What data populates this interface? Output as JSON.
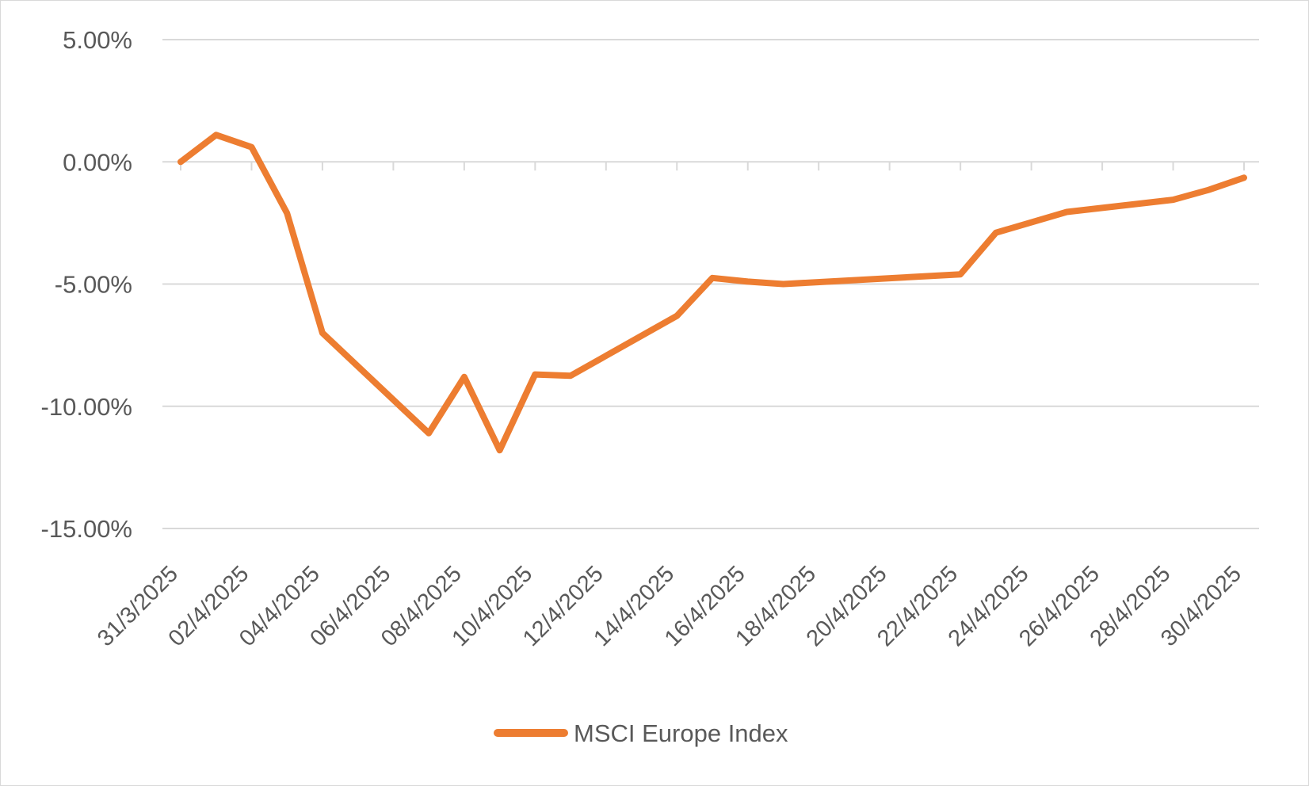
{
  "chart_data": {
    "type": "line",
    "title": "",
    "xlabel": "",
    "ylabel": "",
    "ylim": [
      -15,
      5
    ],
    "y_ticks": [
      "5.00%",
      "0.00%",
      "-5.00%",
      "-10.00%",
      "-15.00%"
    ],
    "y_tick_values": [
      5,
      0,
      -5,
      -10,
      -15
    ],
    "x_start": "31/3/2025",
    "x_end": "30/4/2025",
    "x_ticks": [
      "31/3/2025",
      "02/4/2025",
      "04/4/2025",
      "06/4/2025",
      "08/4/2025",
      "10/4/2025",
      "12/4/2025",
      "14/4/2025",
      "16/4/2025",
      "18/4/2025",
      "20/4/2025",
      "22/4/2025",
      "24/4/2025",
      "26/4/2025",
      "28/4/2025",
      "30/4/2025"
    ],
    "grid": true,
    "legend_position": "bottom",
    "series": [
      {
        "name": "MSCI Europe Index",
        "color": "#ED7D31",
        "points": [
          {
            "x": "31/3/2025",
            "y": 0.0
          },
          {
            "x": "01/4/2025",
            "y": 1.1
          },
          {
            "x": "02/4/2025",
            "y": 0.6
          },
          {
            "x": "03/4/2025",
            "y": -2.1
          },
          {
            "x": "04/4/2025",
            "y": -7.0
          },
          {
            "x": "07/4/2025",
            "y": -11.1
          },
          {
            "x": "08/4/2025",
            "y": -8.8
          },
          {
            "x": "09/4/2025",
            "y": -11.8
          },
          {
            "x": "10/4/2025",
            "y": -8.7
          },
          {
            "x": "11/4/2025",
            "y": -8.75
          },
          {
            "x": "14/4/2025",
            "y": -6.3
          },
          {
            "x": "15/4/2025",
            "y": -4.75
          },
          {
            "x": "16/4/2025",
            "y": -4.9
          },
          {
            "x": "17/4/2025",
            "y": -5.0
          },
          {
            "x": "22/4/2025",
            "y": -4.6
          },
          {
            "x": "23/4/2025",
            "y": -2.9
          },
          {
            "x": "25/4/2025",
            "y": -2.05
          },
          {
            "x": "28/4/2025",
            "y": -1.55
          },
          {
            "x": "29/4/2025",
            "y": -1.15
          },
          {
            "x": "30/4/2025",
            "y": -0.65
          }
        ]
      }
    ]
  }
}
